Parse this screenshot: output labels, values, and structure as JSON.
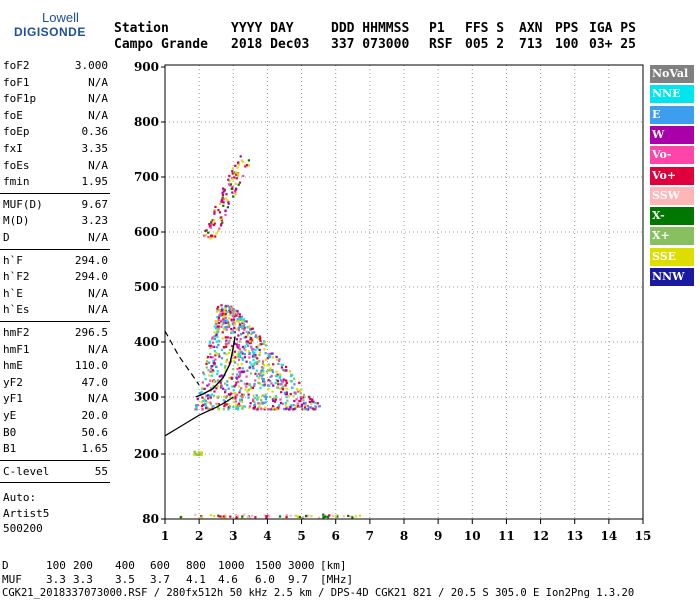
{
  "logo": {
    "line1": "Lowell",
    "line2": "DIGISONDE"
  },
  "header": {
    "row1": [
      "Station",
      "YYYY DAY",
      "DDD HHMMSS",
      "P1",
      "FFS S",
      "AXN",
      "PPS",
      "IGA PS"
    ],
    "row2": [
      "Campo Grande",
      "2018 Dec03",
      "337 073000",
      "RSF",
      "005 2",
      "713",
      "100",
      "03+ 25"
    ]
  },
  "params": {
    "g1": [
      {
        "name": "foF2",
        "value": "3.000"
      },
      {
        "name": "foF1",
        "value": "N/A"
      },
      {
        "name": "foF1p",
        "value": "N/A"
      },
      {
        "name": "foE",
        "value": "N/A"
      },
      {
        "name": "foEp",
        "value": "0.36"
      },
      {
        "name": "fxI",
        "value": "3.35"
      },
      {
        "name": "foEs",
        "value": "N/A"
      },
      {
        "name": "fmin",
        "value": "1.95"
      }
    ],
    "g2": [
      {
        "name": "MUF(D)",
        "value": "9.67"
      },
      {
        "name": "M(D)",
        "value": "3.23"
      },
      {
        "name": "D",
        "value": "N/A"
      }
    ],
    "g3": [
      {
        "name": "h`F",
        "value": "294.0"
      },
      {
        "name": "h`F2",
        "value": "294.0"
      },
      {
        "name": "h`E",
        "value": "N/A"
      },
      {
        "name": "h`Es",
        "value": "N/A"
      }
    ],
    "g4": [
      {
        "name": "hmF2",
        "value": "296.5"
      },
      {
        "name": "hmF1",
        "value": "N/A"
      },
      {
        "name": "hmE",
        "value": "110.0"
      },
      {
        "name": "yF2",
        "value": "47.0"
      },
      {
        "name": "yF1",
        "value": "N/A"
      },
      {
        "name": "yE",
        "value": "20.0"
      },
      {
        "name": "B0",
        "value": "50.6"
      },
      {
        "name": "B1",
        "value": "1.65"
      }
    ],
    "g5": [
      {
        "name": "C-level",
        "value": "55"
      }
    ],
    "auto": [
      "Auto:",
      "Artist5",
      "500200"
    ]
  },
  "legend": [
    {
      "label": "NoVal",
      "bg": "#808080",
      "fg": "#ffffff"
    },
    {
      "label": "NNE",
      "bg": "#00e5ee",
      "fg": "#ffffff"
    },
    {
      "label": "E",
      "bg": "#3d9ef0",
      "fg": "#ffffff"
    },
    {
      "label": "W",
      "bg": "#aa00aa",
      "fg": "#ffffff"
    },
    {
      "label": "Vo-",
      "bg": "#ff44aa",
      "fg": "#ffffff"
    },
    {
      "label": "Vo+",
      "bg": "#e0003c",
      "fg": "#ffffff"
    },
    {
      "label": "SSW",
      "bg": "#ffb6b6",
      "fg": "#ffffff"
    },
    {
      "label": "X-",
      "bg": "#007700",
      "fg": "#ffffff"
    },
    {
      "label": "X+",
      "bg": "#88c060",
      "fg": "#ffffff"
    },
    {
      "label": "SSE",
      "bg": "#dddd00",
      "fg": "#ffffff"
    },
    {
      "label": "NNW",
      "bg": "#1a1aa0",
      "fg": "#ffffff"
    }
  ],
  "footer": {
    "d_label": "D",
    "d_values": [
      "100",
      "200",
      "400",
      "600",
      "800",
      "1000",
      "1500",
      "3000",
      "[km]"
    ],
    "muf_label": "MUF",
    "muf_values": [
      "3.3",
      "3.3",
      "3.5",
      "3.7",
      "4.1",
      "4.6",
      "6.0",
      "9.7",
      "[MHz]"
    ],
    "file_line": "CGK21_2018337073000.RSF / 280fx512h 50 kHz 2.5 km / DPS-4D CGK21 821 / 20.5 S 305.0 E Ion2Png 1.3.20"
  },
  "chart_data": {
    "type": "scatter",
    "title": "",
    "xlabel": "",
    "ylabel": "",
    "xlim": [
      1,
      15
    ],
    "ylim": [
      80,
      900
    ],
    "x_ticks": [
      1,
      2,
      3,
      4,
      5,
      6,
      7,
      8,
      9,
      10,
      11,
      12,
      13,
      14,
      15
    ],
    "y_ticks": [
      80,
      200,
      300,
      400,
      500,
      600,
      700,
      800,
      900
    ],
    "grid": "dotted",
    "legend_placement": "right",
    "clusters": [
      {
        "name": "E-layer trace",
        "x_range": [
          1.4,
          6.7
        ],
        "y_range": [
          84,
          90
        ],
        "colors": [
          "#ffb6b6",
          "#ffb6b6",
          "#007700",
          "#dddd00",
          "#e0003c"
        ]
      },
      {
        "name": "Low patch",
        "x_range": [
          1.75,
          2.05
        ],
        "y_range": [
          200,
          206
        ],
        "colors": [
          "#dddd00",
          "#88c060"
        ]
      },
      {
        "name": "F-trace main",
        "x_range": [
          1.85,
          5.6
        ],
        "y_range": [
          280,
          470
        ],
        "colors": [
          "#dddd00",
          "#ff44aa",
          "#00e5ee",
          "#3d9ef0",
          "#aa00aa",
          "#e0003c",
          "#88c060"
        ]
      },
      {
        "name": "Second-hop",
        "x_range": [
          2.0,
          3.5
        ],
        "y_range": [
          590,
          740
        ],
        "colors": [
          "#dddd00",
          "#aa00aa",
          "#ff44aa",
          "#007700",
          "#e0003c"
        ]
      }
    ],
    "profile_curve": [
      [
        1.9,
        300
      ],
      [
        2.1,
        305
      ],
      [
        2.4,
        315
      ],
      [
        2.7,
        335
      ],
      [
        2.9,
        360
      ],
      [
        3.0,
        390
      ],
      [
        3.05,
        410
      ]
    ],
    "profile_lower": [
      [
        1.0,
        232
      ],
      [
        1.5,
        250
      ],
      [
        2.0,
        268
      ],
      [
        2.5,
        282
      ],
      [
        2.8,
        292
      ],
      [
        3.0,
        300
      ]
    ],
    "profile_dashed": [
      [
        1.0,
        420
      ],
      [
        1.4,
        375
      ],
      [
        1.8,
        340
      ],
      [
        2.0,
        322
      ]
    ]
  }
}
